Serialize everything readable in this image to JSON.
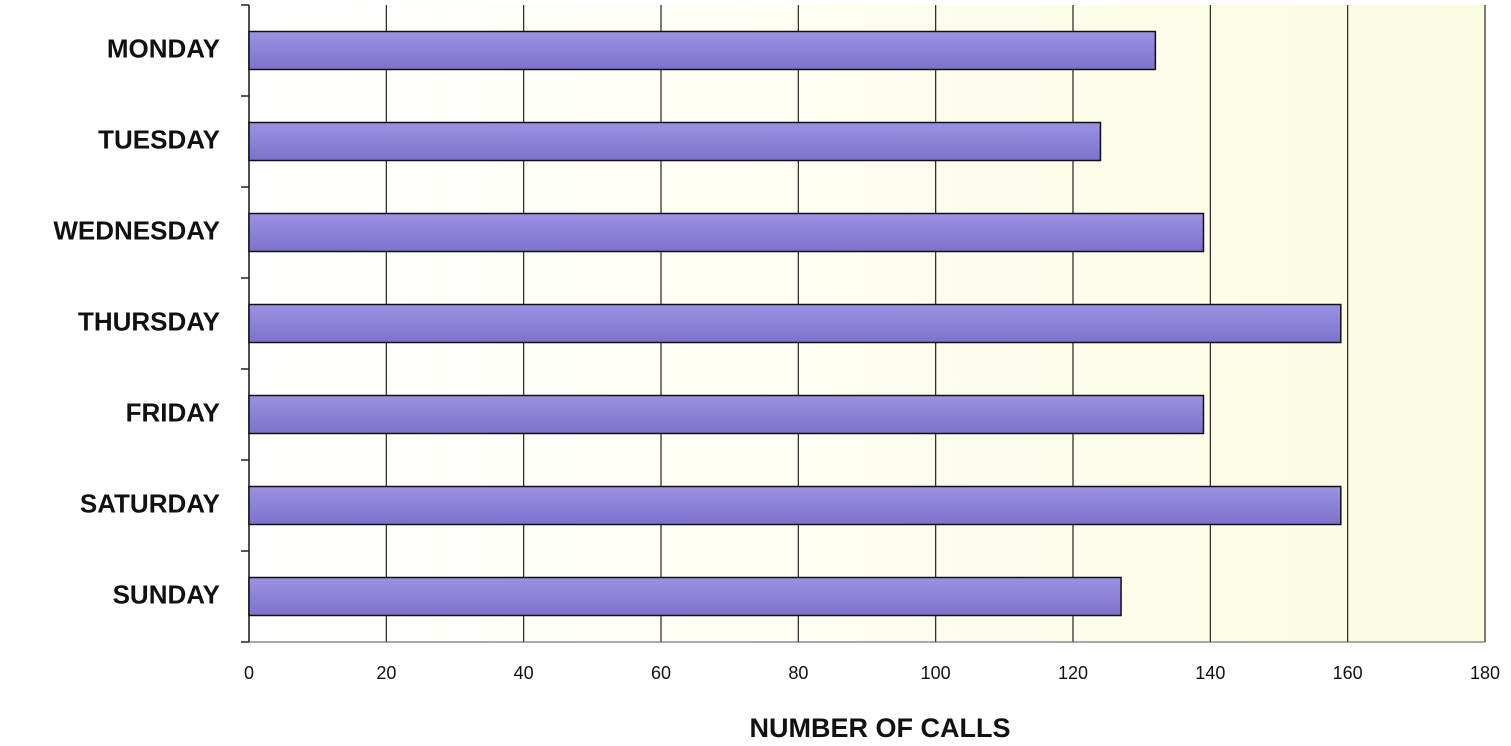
{
  "chart_data": {
    "type": "bar",
    "orientation": "horizontal",
    "x_label": "NUMBER OF CALLS",
    "categories": [
      "MONDAY",
      "TUESDAY",
      "WEDNESDAY",
      "THURSDAY",
      "FRIDAY",
      "SATURDAY",
      "SUNDAY"
    ],
    "values": [
      132,
      124,
      139,
      159,
      139,
      159,
      127
    ],
    "color": "#8a80d8",
    "xlim": [
      0,
      180
    ],
    "xticks": [
      0,
      20,
      40,
      60,
      80,
      100,
      120,
      140,
      160,
      180
    ],
    "grid": true
  }
}
